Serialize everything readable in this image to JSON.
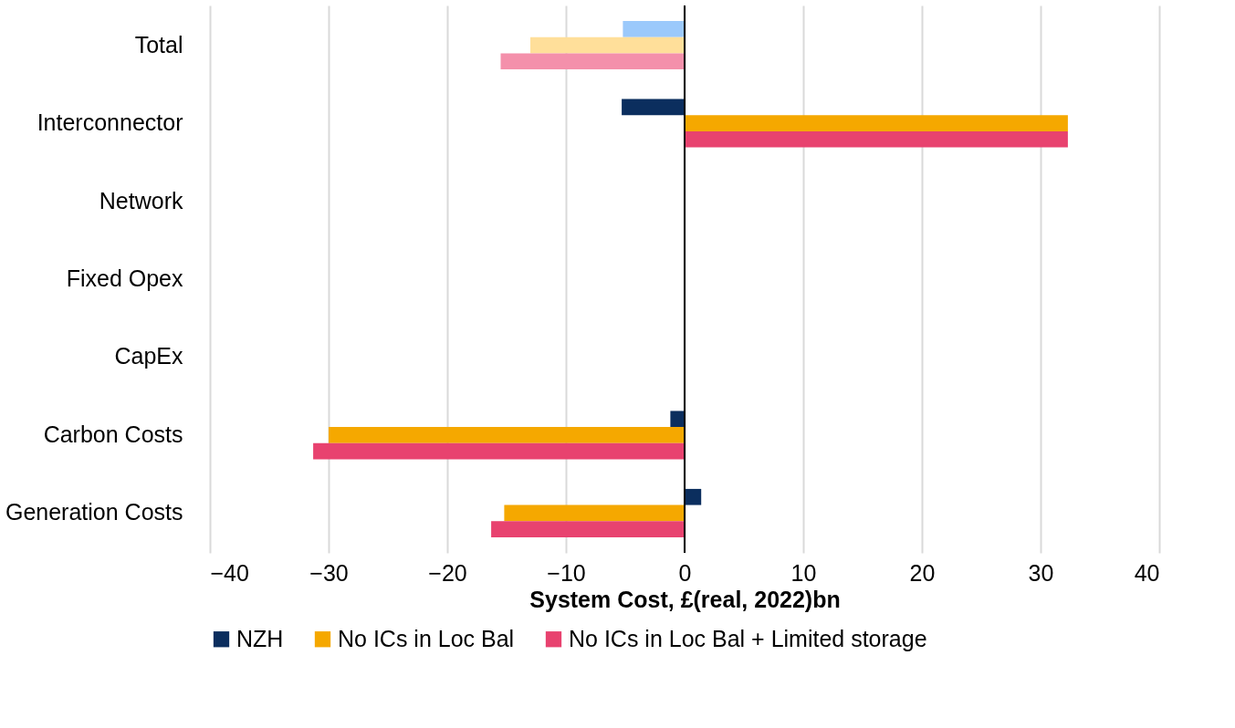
{
  "chart_data": {
    "type": "bar",
    "orientation": "horizontal",
    "xlabel": "System Cost, £(real, 2022)bn",
    "categories": [
      "Total",
      "Interconnector",
      "Network",
      "Fixed Opex",
      "CapEx",
      "Carbon Costs",
      "Generation Costs"
    ],
    "series": [
      {
        "name": "NZH",
        "color": "#0b2e5e",
        "colors": [
          "#9bc9fb",
          "#0b2e5e",
          "#0b2e5e",
          "#0b2e5e",
          "#0b2e5e",
          "#0b2e5e",
          "#0b2e5e"
        ],
        "values": [
          -5.2,
          -5.3,
          0,
          0,
          0,
          -1.2,
          1.4
        ]
      },
      {
        "name": "No ICs in Loc Bal",
        "color": "#f5a800",
        "colors": [
          "#ffdf9a",
          "#f5a800",
          "#f5a800",
          "#f5a800",
          "#f5a800",
          "#f5a800",
          "#f5a800"
        ],
        "values": [
          -13.0,
          32.3,
          0,
          0,
          0,
          -30.0,
          -15.2
        ]
      },
      {
        "name": "No ICs in Loc Bal + Limited storage",
        "color": "#e8426f",
        "colors": [
          "#f490ab",
          "#e8426f",
          "#e8426f",
          "#e8426f",
          "#e8426f",
          "#e8426f",
          "#e8426f"
        ],
        "values": [
          -15.5,
          32.3,
          0,
          0,
          0,
          -31.3,
          -16.3
        ]
      }
    ],
    "xlim": [
      -40,
      40
    ],
    "xticks": [
      -40,
      -30,
      -20,
      -10,
      0,
      10,
      20,
      30,
      40
    ],
    "ref_lines": [
      {
        "axis": "x",
        "value": 0,
        "color": "#000000"
      }
    ],
    "grid": "x",
    "legend": "bottom"
  }
}
